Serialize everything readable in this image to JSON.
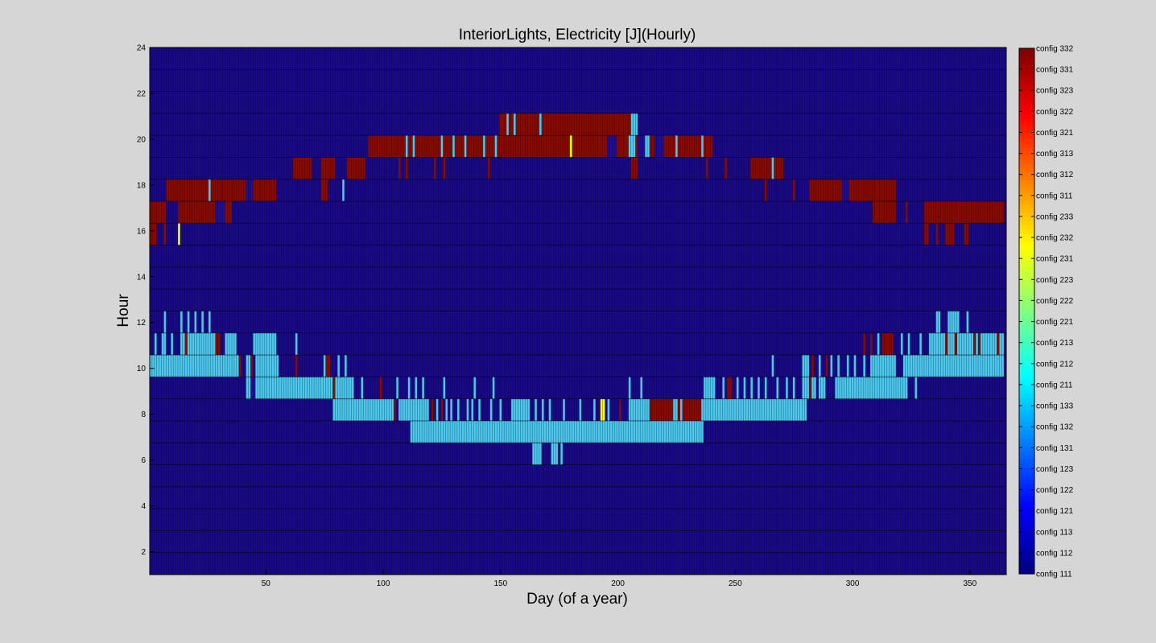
{
  "chart_data": {
    "type": "heatmap",
    "title": "InteriorLights, Electricity [J](Hourly)",
    "xlabel": "Day (of a year)",
    "ylabel": "Hour",
    "xlim": [
      1,
      365
    ],
    "ylim": [
      1,
      24
    ],
    "x_ticks": [
      50,
      100,
      150,
      200,
      250,
      300,
      350
    ],
    "y_ticks": [
      2,
      4,
      6,
      8,
      10,
      12,
      14,
      16,
      18,
      20,
      22,
      24
    ],
    "grid": true,
    "colormap": "jet",
    "colorbar_position": "right",
    "colorbar_labels": [
      "config 111",
      "config 112",
      "config 113",
      "config 121",
      "config 122",
      "config 123",
      "config 131",
      "config 132",
      "config 133",
      "config 211",
      "config 212",
      "config 213",
      "config 221",
      "config 222",
      "config 223",
      "config 231",
      "config 232",
      "config 233",
      "config 311",
      "config 312",
      "config 313",
      "config 321",
      "config 322",
      "config 323",
      "config 331",
      "config 332"
    ],
    "background_value": "config 111",
    "cell_fill": "#1a0a8a",
    "colors": {
      "config 111": "#1f0e96",
      "config 131": "#1a8ee0",
      "config 132": "#2aa6e0",
      "config 133": "#4cc8ee",
      "config 232": "#ffff00",
      "config 332": "#8a0a00"
    },
    "runs": [
      {
        "h": 21,
        "d0": 150,
        "d1": 207,
        "v": "config 332"
      },
      {
        "h": 21,
        "d0": 153,
        "d1": 153,
        "v": "config 133"
      },
      {
        "h": 21,
        "d0": 156,
        "d1": 156,
        "v": "config 133"
      },
      {
        "h": 21,
        "d0": 167,
        "d1": 167,
        "v": "config 133"
      },
      {
        "h": 21,
        "d0": 206,
        "d1": 208,
        "v": "config 133"
      },
      {
        "h": 20,
        "d0": 94,
        "d1": 240,
        "v": "config 332"
      },
      {
        "h": 20,
        "d0": 110,
        "d1": 110,
        "v": "config 133"
      },
      {
        "h": 20,
        "d0": 113,
        "d1": 113,
        "v": "config 133"
      },
      {
        "h": 20,
        "d0": 125,
        "d1": 125,
        "v": "config 133"
      },
      {
        "h": 20,
        "d0": 130,
        "d1": 130,
        "v": "config 133"
      },
      {
        "h": 20,
        "d0": 135,
        "d1": 135,
        "v": "config 133"
      },
      {
        "h": 20,
        "d0": 143,
        "d1": 143,
        "v": "config 133"
      },
      {
        "h": 20,
        "d0": 148,
        "d1": 148,
        "v": "config 133"
      },
      {
        "h": 20,
        "d0": 180,
        "d1": 180,
        "v": "config 232"
      },
      {
        "h": 20,
        "d0": 205,
        "d1": 207,
        "v": "config 133"
      },
      {
        "h": 20,
        "d0": 212,
        "d1": 213,
        "v": "config 133"
      },
      {
        "h": 20,
        "d0": 225,
        "d1": 225,
        "v": "config 133"
      },
      {
        "h": 20,
        "d0": 236,
        "d1": 236,
        "v": "config 133"
      },
      {
        "h": 20,
        "d0": 196,
        "d1": 199,
        "v": "config 111"
      },
      {
        "h": 20,
        "d0": 209,
        "d1": 211,
        "v": "config 111"
      },
      {
        "h": 20,
        "d0": 216,
        "d1": 219,
        "v": "config 111"
      },
      {
        "h": 19,
        "d0": 62,
        "d1": 69,
        "v": "config 332"
      },
      {
        "h": 19,
        "d0": 74,
        "d1": 79,
        "v": "config 332"
      },
      {
        "h": 19,
        "d0": 85,
        "d1": 92,
        "v": "config 332"
      },
      {
        "h": 19,
        "d0": 107,
        "d1": 107,
        "v": "config 332"
      },
      {
        "h": 19,
        "d0": 110,
        "d1": 110,
        "v": "config 332"
      },
      {
        "h": 19,
        "d0": 122,
        "d1": 122,
        "v": "config 332"
      },
      {
        "h": 19,
        "d0": 126,
        "d1": 126,
        "v": "config 332"
      },
      {
        "h": 19,
        "d0": 145,
        "d1": 145,
        "v": "config 332"
      },
      {
        "h": 19,
        "d0": 206,
        "d1": 208,
        "v": "config 332"
      },
      {
        "h": 19,
        "d0": 238,
        "d1": 238,
        "v": "config 332"
      },
      {
        "h": 19,
        "d0": 246,
        "d1": 246,
        "v": "config 332"
      },
      {
        "h": 19,
        "d0": 257,
        "d1": 270,
        "v": "config 332"
      },
      {
        "h": 19,
        "d0": 266,
        "d1": 266,
        "v": "config 133"
      },
      {
        "h": 18,
        "d0": 8,
        "d1": 54,
        "v": "config 332"
      },
      {
        "h": 18,
        "d0": 26,
        "d1": 26,
        "v": "config 133"
      },
      {
        "h": 18,
        "d0": 42,
        "d1": 44,
        "v": "config 111"
      },
      {
        "h": 18,
        "d0": 74,
        "d1": 76,
        "v": "config 332"
      },
      {
        "h": 18,
        "d0": 83,
        "d1": 83,
        "v": "config 133"
      },
      {
        "h": 18,
        "d0": 263,
        "d1": 263,
        "v": "config 332"
      },
      {
        "h": 18,
        "d0": 275,
        "d1": 275,
        "v": "config 332"
      },
      {
        "h": 18,
        "d0": 282,
        "d1": 318,
        "v": "config 332"
      },
      {
        "h": 18,
        "d0": 296,
        "d1": 298,
        "v": "config 111"
      },
      {
        "h": 17,
        "d0": 1,
        "d1": 7,
        "v": "config 332"
      },
      {
        "h": 17,
        "d0": 13,
        "d1": 35,
        "v": "config 332"
      },
      {
        "h": 17,
        "d0": 29,
        "d1": 32,
        "v": "config 111"
      },
      {
        "h": 17,
        "d0": 309,
        "d1": 318,
        "v": "config 332"
      },
      {
        "h": 17,
        "d0": 323,
        "d1": 323,
        "v": "config 332"
      },
      {
        "h": 17,
        "d0": 331,
        "d1": 364,
        "v": "config 332"
      },
      {
        "h": 16,
        "d0": 1,
        "d1": 3,
        "v": "config 332"
      },
      {
        "h": 16,
        "d0": 7,
        "d1": 7,
        "v": "config 332"
      },
      {
        "h": 16,
        "d0": 13,
        "d1": 13,
        "v": "config 232"
      },
      {
        "h": 16,
        "d0": 331,
        "d1": 332,
        "v": "config 332"
      },
      {
        "h": 16,
        "d0": 336,
        "d1": 336,
        "v": "config 332"
      },
      {
        "h": 16,
        "d0": 340,
        "d1": 343,
        "v": "config 332"
      },
      {
        "h": 16,
        "d0": 348,
        "d1": 349,
        "v": "config 332"
      },
      {
        "h": 12,
        "d0": 7,
        "d1": 7,
        "v": "config 133"
      },
      {
        "h": 12,
        "d0": 14,
        "d1": 14,
        "v": "config 133"
      },
      {
        "h": 12,
        "d0": 17,
        "d1": 17,
        "v": "config 133"
      },
      {
        "h": 12,
        "d0": 20,
        "d1": 20,
        "v": "config 133"
      },
      {
        "h": 12,
        "d0": 23,
        "d1": 23,
        "v": "config 133"
      },
      {
        "h": 12,
        "d0": 26,
        "d1": 26,
        "v": "config 133"
      },
      {
        "h": 12,
        "d0": 336,
        "d1": 337,
        "v": "config 133"
      },
      {
        "h": 12,
        "d0": 341,
        "d1": 345,
        "v": "config 133"
      },
      {
        "h": 12,
        "d0": 349,
        "d1": 349,
        "v": "config 133"
      },
      {
        "h": 11,
        "d0": 3,
        "d1": 3,
        "v": "config 133"
      },
      {
        "h": 11,
        "d0": 6,
        "d1": 7,
        "v": "config 133"
      },
      {
        "h": 11,
        "d0": 10,
        "d1": 10,
        "v": "config 133"
      },
      {
        "h": 11,
        "d0": 14,
        "d1": 30,
        "v": "config 133"
      },
      {
        "h": 11,
        "d0": 16,
        "d1": 16,
        "v": "config 332"
      },
      {
        "h": 11,
        "d0": 29,
        "d1": 30,
        "v": "config 332"
      },
      {
        "h": 11,
        "d0": 33,
        "d1": 37,
        "v": "config 133"
      },
      {
        "h": 11,
        "d0": 45,
        "d1": 54,
        "v": "config 133"
      },
      {
        "h": 11,
        "d0": 63,
        "d1": 63,
        "v": "config 133"
      },
      {
        "h": 11,
        "d0": 305,
        "d1": 305,
        "v": "config 332"
      },
      {
        "h": 11,
        "d0": 308,
        "d1": 308,
        "v": "config 332"
      },
      {
        "h": 11,
        "d0": 311,
        "d1": 311,
        "v": "config 133"
      },
      {
        "h": 11,
        "d0": 313,
        "d1": 317,
        "v": "config 332"
      },
      {
        "h": 11,
        "d0": 321,
        "d1": 321,
        "v": "config 133"
      },
      {
        "h": 11,
        "d0": 324,
        "d1": 324,
        "v": "config 133"
      },
      {
        "h": 11,
        "d0": 329,
        "d1": 329,
        "v": "config 133"
      },
      {
        "h": 11,
        "d0": 333,
        "d1": 364,
        "v": "config 133"
      },
      {
        "h": 11,
        "d0": 340,
        "d1": 340,
        "v": "config 332"
      },
      {
        "h": 11,
        "d0": 344,
        "d1": 344,
        "v": "config 332"
      },
      {
        "h": 11,
        "d0": 352,
        "d1": 352,
        "v": "config 332"
      },
      {
        "h": 11,
        "d0": 354,
        "d1": 354,
        "v": "config 332"
      },
      {
        "h": 11,
        "d0": 362,
        "d1": 362,
        "v": "config 332"
      },
      {
        "h": 10,
        "d0": 1,
        "d1": 31,
        "v": "config 133"
      },
      {
        "h": 10,
        "d0": 32,
        "d1": 38,
        "v": "config 133"
      },
      {
        "h": 10,
        "d0": 39,
        "d1": 39,
        "v": "config 332"
      },
      {
        "h": 10,
        "d0": 42,
        "d1": 43,
        "v": "config 133"
      },
      {
        "h": 10,
        "d0": 44,
        "d1": 44,
        "v": "config 332"
      },
      {
        "h": 10,
        "d0": 46,
        "d1": 55,
        "v": "config 133"
      },
      {
        "h": 10,
        "d0": 63,
        "d1": 63,
        "v": "config 332"
      },
      {
        "h": 10,
        "d0": 75,
        "d1": 75,
        "v": "config 133"
      },
      {
        "h": 10,
        "d0": 76,
        "d1": 77,
        "v": "config 332"
      },
      {
        "h": 10,
        "d0": 81,
        "d1": 81,
        "v": "config 133"
      },
      {
        "h": 10,
        "d0": 84,
        "d1": 84,
        "v": "config 133"
      },
      {
        "h": 10,
        "d0": 266,
        "d1": 266,
        "v": "config 133"
      },
      {
        "h": 10,
        "d0": 279,
        "d1": 281,
        "v": "config 133"
      },
      {
        "h": 10,
        "d0": 283,
        "d1": 283,
        "v": "config 332"
      },
      {
        "h": 10,
        "d0": 286,
        "d1": 286,
        "v": "config 133"
      },
      {
        "h": 10,
        "d0": 289,
        "d1": 289,
        "v": "config 332"
      },
      {
        "h": 10,
        "d0": 291,
        "d1": 291,
        "v": "config 133"
      },
      {
        "h": 10,
        "d0": 294,
        "d1": 294,
        "v": "config 133"
      },
      {
        "h": 10,
        "d0": 298,
        "d1": 298,
        "v": "config 133"
      },
      {
        "h": 10,
        "d0": 301,
        "d1": 301,
        "v": "config 133"
      },
      {
        "h": 10,
        "d0": 305,
        "d1": 305,
        "v": "config 133"
      },
      {
        "h": 10,
        "d0": 308,
        "d1": 318,
        "v": "config 133"
      },
      {
        "h": 10,
        "d0": 322,
        "d1": 364,
        "v": "config 133"
      },
      {
        "h": 9,
        "d0": 42,
        "d1": 83,
        "v": "config 133"
      },
      {
        "h": 9,
        "d0": 44,
        "d1": 45,
        "v": "config 111"
      },
      {
        "h": 9,
        "d0": 79,
        "d1": 79,
        "v": "config 332"
      },
      {
        "h": 9,
        "d0": 84,
        "d1": 87,
        "v": "config 133"
      },
      {
        "h": 9,
        "d0": 91,
        "d1": 91,
        "v": "config 133"
      },
      {
        "h": 9,
        "d0": 99,
        "d1": 99,
        "v": "config 332"
      },
      {
        "h": 9,
        "d0": 106,
        "d1": 106,
        "v": "config 133"
      },
      {
        "h": 9,
        "d0": 111,
        "d1": 111,
        "v": "config 133"
      },
      {
        "h": 9,
        "d0": 114,
        "d1": 114,
        "v": "config 133"
      },
      {
        "h": 9,
        "d0": 117,
        "d1": 117,
        "v": "config 133"
      },
      {
        "h": 9,
        "d0": 126,
        "d1": 126,
        "v": "config 133"
      },
      {
        "h": 9,
        "d0": 139,
        "d1": 139,
        "v": "config 133"
      },
      {
        "h": 9,
        "d0": 147,
        "d1": 147,
        "v": "config 133"
      },
      {
        "h": 9,
        "d0": 205,
        "d1": 205,
        "v": "config 133"
      },
      {
        "h": 9,
        "d0": 210,
        "d1": 210,
        "v": "config 133"
      },
      {
        "h": 9,
        "d0": 237,
        "d1": 241,
        "v": "config 133"
      },
      {
        "h": 9,
        "d0": 245,
        "d1": 245,
        "v": "config 133"
      },
      {
        "h": 9,
        "d0": 247,
        "d1": 248,
        "v": "config 332"
      },
      {
        "h": 9,
        "d0": 251,
        "d1": 251,
        "v": "config 133"
      },
      {
        "h": 9,
        "d0": 254,
        "d1": 254,
        "v": "config 133"
      },
      {
        "h": 9,
        "d0": 257,
        "d1": 257,
        "v": "config 133"
      },
      {
        "h": 9,
        "d0": 260,
        "d1": 260,
        "v": "config 133"
      },
      {
        "h": 9,
        "d0": 263,
        "d1": 263,
        "v": "config 133"
      },
      {
        "h": 9,
        "d0": 268,
        "d1": 268,
        "v": "config 133"
      },
      {
        "h": 9,
        "d0": 272,
        "d1": 272,
        "v": "config 133"
      },
      {
        "h": 9,
        "d0": 275,
        "d1": 275,
        "v": "config 133"
      },
      {
        "h": 9,
        "d0": 279,
        "d1": 284,
        "v": "config 133"
      },
      {
        "h": 9,
        "d0": 282,
        "d1": 282,
        "v": "config 332"
      },
      {
        "h": 9,
        "d0": 286,
        "d1": 288,
        "v": "config 133"
      },
      {
        "h": 9,
        "d0": 293,
        "d1": 323,
        "v": "config 133"
      },
      {
        "h": 9,
        "d0": 327,
        "d1": 327,
        "v": "config 133"
      },
      {
        "h": 8,
        "d0": 79,
        "d1": 104,
        "v": "config 133"
      },
      {
        "h": 8,
        "d0": 105,
        "d1": 105,
        "v": "config 332"
      },
      {
        "h": 8,
        "d0": 107,
        "d1": 119,
        "v": "config 133"
      },
      {
        "h": 8,
        "d0": 121,
        "d1": 121,
        "v": "config 332"
      },
      {
        "h": 8,
        "d0": 123,
        "d1": 123,
        "v": "config 133"
      },
      {
        "h": 8,
        "d0": 125,
        "d1": 125,
        "v": "config 332"
      },
      {
        "h": 8,
        "d0": 127,
        "d1": 127,
        "v": "config 133"
      },
      {
        "h": 8,
        "d0": 129,
        "d1": 129,
        "v": "config 133"
      },
      {
        "h": 8,
        "d0": 132,
        "d1": 132,
        "v": "config 133"
      },
      {
        "h": 8,
        "d0": 136,
        "d1": 136,
        "v": "config 133"
      },
      {
        "h": 8,
        "d0": 138,
        "d1": 138,
        "v": "config 133"
      },
      {
        "h": 8,
        "d0": 141,
        "d1": 141,
        "v": "config 133"
      },
      {
        "h": 8,
        "d0": 146,
        "d1": 146,
        "v": "config 133"
      },
      {
        "h": 8,
        "d0": 150,
        "d1": 150,
        "v": "config 133"
      },
      {
        "h": 8,
        "d0": 155,
        "d1": 162,
        "v": "config 133"
      },
      {
        "h": 8,
        "d0": 165,
        "d1": 165,
        "v": "config 133"
      },
      {
        "h": 8,
        "d0": 168,
        "d1": 168,
        "v": "config 133"
      },
      {
        "h": 8,
        "d0": 171,
        "d1": 171,
        "v": "config 133"
      },
      {
        "h": 8,
        "d0": 177,
        "d1": 177,
        "v": "config 133"
      },
      {
        "h": 8,
        "d0": 184,
        "d1": 184,
        "v": "config 133"
      },
      {
        "h": 8,
        "d0": 190,
        "d1": 190,
        "v": "config 133"
      },
      {
        "h": 8,
        "d0": 193,
        "d1": 194,
        "v": "config 232"
      },
      {
        "h": 8,
        "d0": 196,
        "d1": 196,
        "v": "config 133"
      },
      {
        "h": 8,
        "d0": 201,
        "d1": 201,
        "v": "config 332"
      },
      {
        "h": 8,
        "d0": 205,
        "d1": 236,
        "v": "config 133"
      },
      {
        "h": 8,
        "d0": 214,
        "d1": 223,
        "v": "config 332"
      },
      {
        "h": 8,
        "d0": 226,
        "d1": 226,
        "v": "config 332"
      },
      {
        "h": 8,
        "d0": 228,
        "d1": 235,
        "v": "config 332"
      },
      {
        "h": 8,
        "d0": 237,
        "d1": 280,
        "v": "config 133"
      },
      {
        "h": 7,
        "d0": 112,
        "d1": 113,
        "v": "config 133"
      },
      {
        "h": 7,
        "d0": 114,
        "d1": 236,
        "v": "config 133"
      },
      {
        "h": 6,
        "d0": 164,
        "d1": 167,
        "v": "config 133"
      },
      {
        "h": 6,
        "d0": 172,
        "d1": 174,
        "v": "config 133"
      },
      {
        "h": 6,
        "d0": 176,
        "d1": 176,
        "v": "config 133"
      }
    ]
  }
}
